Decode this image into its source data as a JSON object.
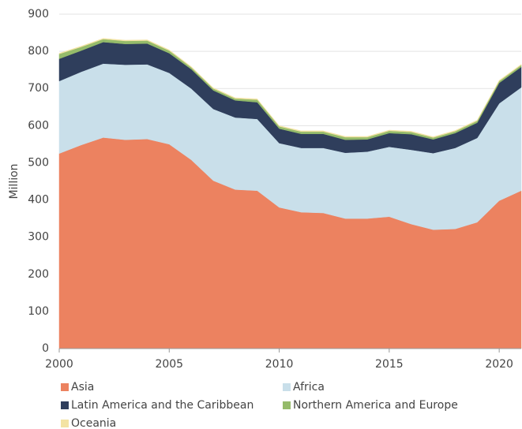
{
  "chart_data": {
    "type": "stacked_area",
    "y_label": "Million",
    "x": [
      2000,
      2001,
      2002,
      2003,
      2004,
      2005,
      2006,
      2007,
      2008,
      2009,
      2010,
      2011,
      2012,
      2013,
      2014,
      2015,
      2016,
      2017,
      2018,
      2019,
      2020,
      2021
    ],
    "xlim": [
      2000,
      2021
    ],
    "xticks": [
      2000,
      2005,
      2010,
      2015,
      2020
    ],
    "ylim": [
      0,
      900
    ],
    "yticks": [
      0,
      100,
      200,
      300,
      400,
      500,
      600,
      700,
      800,
      900
    ],
    "grid": true,
    "legend": "bottom",
    "series": [
      {
        "name": "Asia",
        "color": "#ec8260",
        "values": [
          525,
          548,
          568,
          562,
          564,
          550,
          508,
          452,
          428,
          425,
          380,
          367,
          365,
          350,
          350,
          355,
          335,
          320,
          322,
          340,
          398,
          425
        ]
      },
      {
        "name": "Africa",
        "color": "#c9dfea",
        "values": [
          195,
          197,
          199,
          202,
          201,
          192,
          192,
          193,
          194,
          193,
          173,
          173,
          175,
          177,
          180,
          188,
          200,
          206,
          218,
          227,
          262,
          278
        ]
      },
      {
        "name": "Latin America and the Caribbean",
        "color": "#2f3e5c",
        "values": [
          60,
          57,
          58,
          56,
          56,
          53,
          52,
          50,
          46,
          45,
          39,
          38,
          38,
          35,
          33,
          37,
          42,
          37,
          40,
          41,
          55,
          55
        ]
      },
      {
        "name": "Northern America and Europe",
        "color": "#95bb6a",
        "values": [
          13,
          10,
          8,
          8,
          8,
          7,
          5,
          5,
          5,
          7,
          6,
          6,
          6,
          7,
          6,
          6,
          6,
          5,
          5,
          5,
          5,
          5
        ]
      },
      {
        "name": "Oceania",
        "color": "#f3e3a3",
        "values": [
          2,
          2,
          2,
          2,
          2,
          2,
          2,
          2,
          2,
          2,
          2,
          2,
          2,
          2,
          2,
          2,
          2,
          2,
          2,
          2,
          2,
          2
        ]
      }
    ]
  }
}
